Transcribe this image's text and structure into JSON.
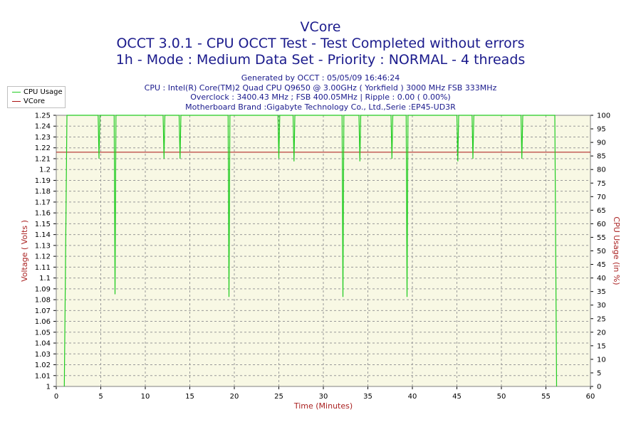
{
  "header": {
    "title": "VCore",
    "line2": "OCCT 3.0.1 - CPU OCCT Test - Test Completed without errors",
    "line3": "1h - Mode : Medium Data Set - Priority : NORMAL - 4 threads",
    "info": [
      "Generated by OCCT : 05/05/09 16:46:24",
      "CPU : Intel(R) Core(TM)2 Quad CPU Q9650 @ 3.00GHz ( Yorkfield ) 3000 MHz FSB 333MHz",
      "Overclock : 3400.43 MHz ; FSB 400.05MHz | Ripple : 0.00 ( 0.00%)",
      "Motherboard Brand :Gigabyte Technology Co., Ltd.,Serie :EP45-UD3R"
    ]
  },
  "colors": {
    "plot_bg": "#f8f8e4",
    "grid": "#999999",
    "cpu": "#22cc22",
    "vcore": "#aa1111",
    "axis_label": "#aa2222",
    "title": "#1a1a8c"
  },
  "chart_data": {
    "type": "line",
    "title": "VCore",
    "xlabel": "Time (Minutes)",
    "ylabel": "Voltage ( Volts )",
    "y2label": "CPU Usage (in %)",
    "xlim": [
      0,
      60
    ],
    "ylim": [
      1.0,
      1.25
    ],
    "y2lim": [
      0,
      100
    ],
    "xticks": [
      0,
      5,
      10,
      15,
      20,
      25,
      30,
      35,
      40,
      45,
      50,
      55,
      60
    ],
    "yticks": [
      1,
      1.01,
      1.02,
      1.03,
      1.04,
      1.05,
      1.06,
      1.07,
      1.08,
      1.09,
      1.1,
      1.11,
      1.12,
      1.13,
      1.14,
      1.15,
      1.16,
      1.17,
      1.18,
      1.19,
      1.2,
      1.21,
      1.22,
      1.23,
      1.24,
      1.25
    ],
    "y2ticks": [
      0,
      5,
      10,
      15,
      20,
      25,
      30,
      35,
      40,
      45,
      50,
      55,
      60,
      65,
      70,
      75,
      80,
      85,
      90,
      95,
      100
    ],
    "grid": true,
    "legend_position": "top-left",
    "series": [
      {
        "name": "CPU Usage",
        "axis": "right",
        "x": [
          0.9,
          1.2,
          4.7,
          4.8,
          4.9,
          6.5,
          6.6,
          6.7,
          12.0,
          12.1,
          12.2,
          13.8,
          13.9,
          14.0,
          19.3,
          19.4,
          19.5,
          24.9,
          25.0,
          25.1,
          26.6,
          26.7,
          26.8,
          32.1,
          32.2,
          32.3,
          34.0,
          34.1,
          34.2,
          37.6,
          37.7,
          37.8,
          39.3,
          39.4,
          39.5,
          45.0,
          45.1,
          45.2,
          46.7,
          46.8,
          46.9,
          52.2,
          52.3,
          52.4,
          56.0,
          56.2
        ],
        "y": [
          0,
          100,
          100,
          84,
          100,
          100,
          34,
          100,
          100,
          84,
          100,
          100,
          84,
          100,
          100,
          33,
          100,
          100,
          84,
          100,
          100,
          83,
          100,
          100,
          33,
          100,
          100,
          83,
          100,
          100,
          84,
          100,
          100,
          33,
          100,
          100,
          83,
          100,
          100,
          84,
          100,
          100,
          84,
          100,
          100,
          0
        ]
      },
      {
        "name": "VCore",
        "axis": "left",
        "x": [
          0,
          60
        ],
        "y": [
          1.216,
          1.216
        ]
      }
    ]
  }
}
